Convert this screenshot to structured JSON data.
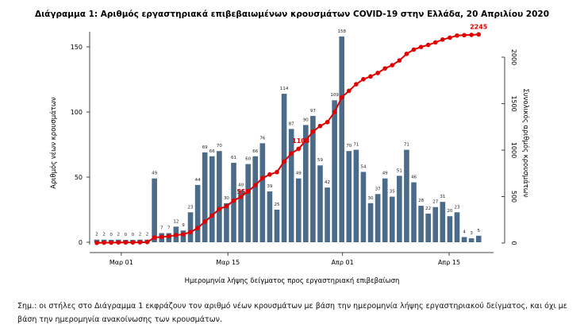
{
  "chart_data": {
    "type": "bar+line",
    "title": "Διάγραμμα 1: Αριθμός εργαστηριακά επιβεβαιωμένων κρουσμάτων COVID-19 στην Ελλάδα, 20 Απριλίου 2020",
    "xlabel": "Ημερομηνία λήψης δείγματος προς εργαστηριακή επιβεβαίωση",
    "ylabel": "Αριθμός νέων κρουσμάτων",
    "y2label": "Συνολικός αριθμός κρουσμάτων",
    "ylim": [
      0,
      160
    ],
    "y2lim": [
      0,
      2300
    ],
    "yticks": [
      0,
      50,
      100,
      150
    ],
    "y2ticks": [
      0,
      500,
      1000,
      1500,
      2000
    ],
    "xticks": [
      {
        "label": "Μαρ 01",
        "index": 3.4
      },
      {
        "label": "Μαρ 15",
        "index": 18.2
      },
      {
        "label": "Απρ 01",
        "index": 34.1
      },
      {
        "label": "Απρ 15",
        "index": 48.9
      }
    ],
    "series": [
      {
        "name": "Νέα κρούσματα",
        "type": "bar",
        "color": "#4a6b8a",
        "values": [
          2,
          2,
          0,
          2,
          0,
          0,
          2,
          2,
          49,
          7,
          7,
          12,
          9,
          23,
          44,
          69,
          66,
          70,
          30,
          61,
          40,
          60,
          66,
          76,
          39,
          25,
          114,
          87,
          49,
          90,
          97,
          59,
          42,
          109,
          158,
          70,
          71,
          54,
          30,
          37,
          49,
          35,
          51,
          71,
          46,
          28,
          22,
          27,
          31,
          20,
          23,
          4,
          3,
          5
        ]
      },
      {
        "name": "Συνολικά κρούσματα",
        "type": "line",
        "color": "#e00000",
        "axis": "right",
        "cumulative_of": "Νέα κρούσματα",
        "annotations": [
          {
            "index": 21,
            "label": "557"
          },
          {
            "index": 29,
            "label": "1103"
          },
          {
            "index": 53,
            "label": "2245"
          }
        ]
      }
    ]
  },
  "note": "Σημ.: οι στήλες στο Διάγραμμα 1 εκφράζουν τον αριθμό νέων κρουσμάτων με βάση την ημερομηνία λήψης εργαστηριακού δείγματος, και όχι με βάση την ημερομηνία ανακοίνωσης των κρουσμάτων."
}
